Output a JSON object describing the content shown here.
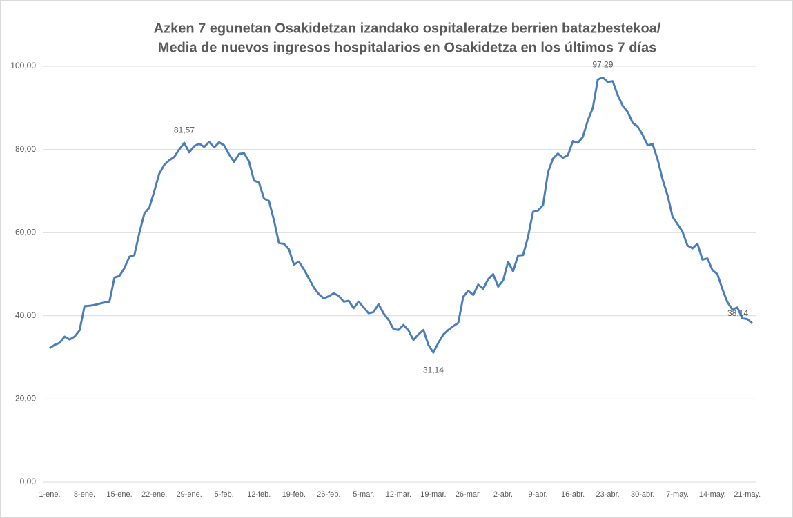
{
  "chart_data": {
    "type": "line",
    "title": [
      "Azken 7 egunetan Osakidetzan izandako ospitaleratze berrien batazbestekoa/",
      "Media de nuevos ingresos hospitalarios en Osakidetza en los últimos 7 días"
    ],
    "categories": [
      "1-ene.",
      null,
      null,
      null,
      null,
      null,
      null,
      "8-ene.",
      null,
      null,
      null,
      null,
      null,
      null,
      "15-ene.",
      null,
      null,
      null,
      null,
      null,
      null,
      "22-ene.",
      null,
      null,
      null,
      null,
      null,
      null,
      "29-ene.",
      null,
      null,
      null,
      null,
      null,
      null,
      "5-feb.",
      null,
      null,
      null,
      null,
      null,
      null,
      "12-feb.",
      null,
      null,
      null,
      null,
      null,
      null,
      "19-feb.",
      null,
      null,
      null,
      null,
      null,
      null,
      "26-feb.",
      null,
      null,
      null,
      null,
      null,
      null,
      "5-mar.",
      null,
      null,
      null,
      null,
      null,
      null,
      "12-mar.",
      null,
      null,
      null,
      null,
      null,
      null,
      "19-mar.",
      null,
      null,
      null,
      null,
      null,
      null,
      "26-mar.",
      null,
      null,
      null,
      null,
      null,
      null,
      "2-abr.",
      null,
      null,
      null,
      null,
      null,
      null,
      "9-abr.",
      null,
      null,
      null,
      null,
      null,
      null,
      "16-abr.",
      null,
      null,
      null,
      null,
      null,
      null,
      "23-abr.",
      null,
      null,
      null,
      null,
      null,
      null,
      "30-abr.",
      null,
      null,
      null,
      null,
      null,
      null,
      "7-may.",
      null,
      null,
      null,
      null,
      null,
      null,
      "14-may.",
      null,
      null,
      null,
      null,
      null,
      null,
      "21-may.",
      null
    ],
    "values": [
      32.2,
      33,
      33.5,
      35,
      34.3,
      35,
      36.5,
      42.3,
      42.4,
      42.6,
      42.9,
      43.2,
      43.4,
      49.2,
      49.6,
      51.5,
      54.2,
      54.6,
      60,
      64.6,
      66,
      70,
      74.2,
      76.3,
      77.4,
      78.2,
      80.0,
      81.57,
      79.3,
      80.8,
      81.4,
      80.6,
      81.8,
      80.5,
      81.7,
      81.0,
      78.8,
      77.0,
      78.9,
      79.1,
      77.1,
      72.5,
      72.0,
      68.2,
      67.6,
      63.0,
      57.5,
      57.3,
      56.0,
      52.3,
      53.0,
      51.2,
      49.0,
      46.8,
      45.2,
      44.2,
      44.7,
      45.4,
      44.8,
      43.4,
      43.6,
      41.8,
      43.4,
      42.0,
      40.6,
      40.9,
      42.8,
      40.6,
      39.0,
      36.8,
      36.6,
      37.8,
      36.5,
      34.2,
      35.5,
      36.6,
      33.0,
      31.14,
      33.5,
      35.5,
      36.6,
      37.5,
      38.3,
      44.6,
      46.0,
      45.0,
      47.5,
      46.5,
      48.8,
      50.0,
      47.0,
      48.5,
      53.0,
      50.7,
      54.5,
      54.6,
      59.0,
      65.0,
      65.3,
      66.6,
      74.5,
      77.8,
      79.0,
      78.0,
      78.6,
      82.0,
      81.6,
      83.0,
      87.0,
      90.0,
      96.8,
      97.29,
      96.2,
      96.4,
      93.0,
      90.5,
      89.0,
      86.4,
      85.5,
      83.5,
      81.0,
      81.3,
      77.6,
      72.8,
      68.9,
      63.8,
      62.0,
      60.2,
      56.9,
      56.2,
      57.3,
      53.5,
      53.8,
      51.0,
      50.0,
      46.4,
      43.3,
      41.5,
      42.0,
      39.4,
      39.2,
      38.14
    ],
    "value_labels": [
      null,
      null,
      null,
      null,
      null,
      null,
      null,
      null,
      null,
      null,
      null,
      null,
      null,
      null,
      null,
      null,
      null,
      null,
      null,
      null,
      null,
      null,
      null,
      null,
      null,
      null,
      null,
      "81,57",
      null,
      null,
      null,
      null,
      null,
      null,
      null,
      null,
      null,
      null,
      null,
      null,
      null,
      null,
      null,
      null,
      null,
      null,
      null,
      null,
      null,
      null,
      null,
      null,
      null,
      null,
      null,
      null,
      null,
      null,
      null,
      null,
      null,
      null,
      null,
      null,
      null,
      null,
      null,
      null,
      null,
      null,
      null,
      null,
      null,
      null,
      null,
      null,
      null,
      "31,14",
      null,
      null,
      null,
      null,
      null,
      null,
      null,
      null,
      null,
      null,
      null,
      null,
      null,
      null,
      null,
      null,
      null,
      null,
      null,
      null,
      null,
      null,
      null,
      null,
      null,
      null,
      null,
      null,
      null,
      null,
      null,
      null,
      null,
      "97,29",
      null,
      null,
      null,
      null,
      null,
      null,
      null,
      null,
      null,
      null,
      null,
      null,
      null,
      null,
      null,
      null,
      null,
      null,
      null,
      null,
      null,
      null,
      null,
      null,
      null,
      null,
      null,
      null,
      null,
      "38,14"
    ],
    "color": "#4a7ebb",
    "ylim": [
      0,
      100
    ],
    "yticks": [
      {
        "value": 0,
        "label": "0,00"
      },
      {
        "value": 20,
        "label": "20,00"
      },
      {
        "value": 40,
        "label": "40,00"
      },
      {
        "value": 60,
        "label": "60,00"
      },
      {
        "value": 80,
        "label": "80,00"
      },
      {
        "value": 100,
        "label": "100,00"
      }
    ],
    "grid": true
  }
}
